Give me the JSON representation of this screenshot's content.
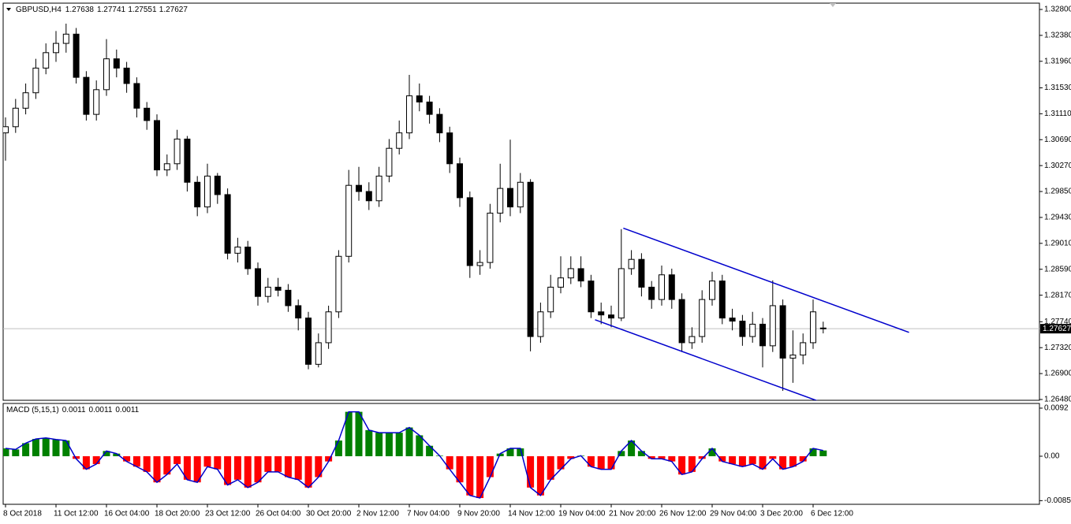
{
  "chart_data": {
    "type": "candlestick",
    "symbol": "GBPUSD,H4",
    "quote": [
      1.27638,
      1.27741,
      1.27551,
      1.27627
    ],
    "up_color": "#ffffff",
    "down_color": "#000000",
    "wick_color": "#000000",
    "categories": [
      "8 Oct 2018",
      null,
      null,
      null,
      null,
      "11 Oct 12:00",
      null,
      null,
      null,
      null,
      "16 Oct 04:00",
      null,
      null,
      null,
      null,
      "18 Oct 20:00",
      null,
      null,
      null,
      null,
      "23 Oct 12:00",
      null,
      null,
      null,
      null,
      "26 Oct 04:00",
      null,
      null,
      null,
      null,
      "30 Oct 20:00",
      null,
      null,
      null,
      null,
      "2 Nov 12:00",
      null,
      null,
      null,
      null,
      "7 Nov 04:00",
      null,
      null,
      null,
      null,
      "9 Nov 20:00",
      null,
      null,
      null,
      null,
      "14 Nov 12:00",
      null,
      null,
      null,
      null,
      "19 Nov 04:00",
      null,
      null,
      null,
      null,
      "21 Nov 20:00",
      null,
      null,
      null,
      null,
      "26 Nov 12:00",
      null,
      null,
      null,
      null,
      "29 Nov 04:00",
      null,
      null,
      null,
      null,
      "3 Dec 20:00",
      null,
      null,
      null,
      null,
      "6 Dec 12:00",
      null
    ],
    "open": [
      1.308,
      1.309,
      1.312,
      1.3145,
      1.3185,
      1.321,
      1.3225,
      1.324,
      1.317,
      1.311,
      1.315,
      1.32,
      1.3185,
      1.316,
      1.312,
      1.31,
      1.302,
      1.303,
      1.307,
      1.3,
      1.296,
      1.301,
      1.298,
      1.2885,
      1.2895,
      1.286,
      1.2815,
      1.283,
      1.2825,
      1.28,
      1.278,
      1.2705,
      1.274,
      1.279,
      1.288,
      1.2995,
      1.2985,
      1.297,
      1.301,
      1.3055,
      1.308,
      1.314,
      1.313,
      1.311,
      1.308,
      1.303,
      1.2975,
      1.2865,
      1.287,
      1.295,
      1.299,
      1.296,
      1.3,
      1.275,
      1.279,
      1.283,
      1.2845,
      1.286,
      1.284,
      1.279,
      1.2785,
      1.278,
      1.286,
      1.2875,
      1.283,
      1.281,
      1.285,
      1.281,
      1.274,
      1.275,
      1.281,
      1.284,
      1.278,
      1.2775,
      1.275,
      1.277,
      1.2735,
      1.28,
      1.2715,
      1.272,
      1.274,
      1.27638
    ],
    "high": [
      1.3105,
      1.3135,
      1.316,
      1.32,
      1.3225,
      1.3245,
      1.3257,
      1.325,
      1.318,
      1.3165,
      1.3232,
      1.3215,
      1.3195,
      1.317,
      1.313,
      1.311,
      1.3045,
      1.3085,
      1.3075,
      1.301,
      1.303,
      1.3015,
      1.299,
      1.291,
      1.2905,
      1.287,
      1.2845,
      1.2845,
      1.2835,
      1.281,
      1.279,
      1.2755,
      1.28,
      1.289,
      1.302,
      1.3025,
      1.3,
      1.3025,
      1.307,
      1.31,
      1.3174,
      1.316,
      1.314,
      1.312,
      1.309,
      1.304,
      1.2985,
      1.289,
      1.2965,
      1.303,
      1.3069,
      1.3015,
      1.3005,
      1.2805,
      1.285,
      1.288,
      1.288,
      1.288,
      1.285,
      1.2805,
      1.28,
      1.2924,
      1.289,
      1.2885,
      1.284,
      1.2865,
      1.286,
      1.282,
      1.2765,
      1.2825,
      1.2855,
      1.285,
      1.2795,
      1.2785,
      1.279,
      1.278,
      1.2841,
      1.281,
      1.276,
      1.2755,
      1.281,
      1.27741
    ],
    "low": [
      1.3035,
      1.308,
      1.311,
      1.3135,
      1.3175,
      1.3195,
      1.321,
      1.316,
      1.31,
      1.31,
      1.314,
      1.317,
      1.3145,
      1.3105,
      1.3085,
      1.301,
      1.301,
      1.302,
      1.2985,
      1.2945,
      1.295,
      1.2965,
      1.2875,
      1.287,
      1.285,
      1.28,
      1.2805,
      1.2815,
      1.279,
      1.276,
      1.2697,
      1.27,
      1.273,
      1.278,
      1.287,
      1.297,
      1.2955,
      1.296,
      1.3,
      1.3045,
      1.307,
      1.3115,
      1.3095,
      1.3065,
      1.3015,
      1.296,
      1.2845,
      1.285,
      1.286,
      1.2935,
      1.2945,
      1.295,
      1.2726,
      1.274,
      1.278,
      1.282,
      1.2835,
      1.283,
      1.278,
      1.277,
      1.2765,
      1.2775,
      1.285,
      1.2815,
      1.2795,
      1.28,
      1.2795,
      1.2725,
      1.273,
      1.274,
      1.28,
      1.277,
      1.276,
      1.2735,
      1.274,
      1.27,
      1.2725,
      1.2662,
      1.2675,
      1.2705,
      1.273,
      1.27551
    ],
    "close": [
      1.309,
      1.312,
      1.3145,
      1.3185,
      1.321,
      1.3225,
      1.324,
      1.317,
      1.311,
      1.315,
      1.32,
      1.3185,
      1.316,
      1.312,
      1.31,
      1.302,
      1.303,
      1.307,
      1.3,
      1.296,
      1.301,
      1.298,
      1.2885,
      1.2895,
      1.286,
      1.2815,
      1.283,
      1.2825,
      1.28,
      1.278,
      1.2705,
      1.274,
      1.279,
      1.288,
      1.2995,
      1.2985,
      1.297,
      1.301,
      1.3055,
      1.308,
      1.314,
      1.313,
      1.311,
      1.308,
      1.303,
      1.2975,
      1.2865,
      1.287,
      1.295,
      1.299,
      1.296,
      1.3,
      1.275,
      1.279,
      1.283,
      1.2845,
      1.286,
      1.284,
      1.279,
      1.2785,
      1.278,
      1.286,
      1.2875,
      1.283,
      1.281,
      1.285,
      1.281,
      1.274,
      1.275,
      1.281,
      1.284,
      1.278,
      1.2775,
      1.275,
      1.277,
      1.2735,
      1.28,
      1.2715,
      1.272,
      1.274,
      1.279,
      1.27627
    ],
    "ylim": [
      1.26467,
      1.32902
    ],
    "yticks": [
      {
        "value": 1.328,
        "label": "1.32800"
      },
      {
        "value": 1.3238,
        "label": "1.32380"
      },
      {
        "value": 1.3196,
        "label": "1.31960"
      },
      {
        "value": 1.3153,
        "label": "1.31530"
      },
      {
        "value": 1.3111,
        "label": "1.31110"
      },
      {
        "value": 1.3069,
        "label": "1.30690"
      },
      {
        "value": 1.3027,
        "label": "1.30270"
      },
      {
        "value": 1.2985,
        "label": "1.29850"
      },
      {
        "value": 1.2943,
        "label": "1.29430"
      },
      {
        "value": 1.2901,
        "label": "1.29010"
      },
      {
        "value": 1.2859,
        "label": "1.28590"
      },
      {
        "value": 1.2817,
        "label": "1.28170"
      },
      {
        "value": 1.2774,
        "label": "1.27740"
      },
      {
        "value": 1.2732,
        "label": "1.27320"
      },
      {
        "value": 1.269,
        "label": "1.26900"
      },
      {
        "value": 1.2648,
        "label": "1.26480"
      }
    ],
    "trendlines": [
      {
        "color": "#0000cc",
        "x": [
          61.2,
          89.5
        ],
        "y": [
          1.29256,
          1.27567
        ]
      },
      {
        "color": "#0000cc",
        "x": [
          58.4,
          80.5
        ],
        "y": [
          1.27772,
          1.26454
        ]
      }
    ],
    "indicator": {
      "type": "bar",
      "name": "MACD (5,15,1)",
      "readout": [
        0.0011,
        0.0011,
        0.0011
      ],
      "up_color": "#008000",
      "down_color": "#ff0000",
      "line_color": "#0000cc",
      "values": [
        0.0015,
        0.0013,
        0.0025,
        0.0033,
        0.0035,
        0.0032,
        0.003,
        -0.0005,
        -0.0025,
        -0.0015,
        0.001,
        0.0005,
        -0.001,
        -0.002,
        -0.003,
        -0.005,
        -0.0035,
        -0.0015,
        -0.0045,
        -0.005,
        -0.002,
        -0.0025,
        -0.0055,
        -0.0045,
        -0.006,
        -0.005,
        -0.003,
        -0.003,
        -0.004,
        -0.0045,
        -0.006,
        -0.004,
        -0.001,
        0.003,
        0.0085,
        0.0085,
        0.005,
        0.0045,
        0.0045,
        0.0045,
        0.0055,
        0.004,
        0.002,
        0.0001,
        -0.0025,
        -0.005,
        -0.0075,
        -0.008,
        -0.004,
        0.0005,
        0.0015,
        0.0015,
        -0.006,
        -0.0075,
        -0.0045,
        -0.0025,
        -0.0005,
        0.0001,
        -0.002,
        -0.0025,
        -0.0025,
        0.001,
        0.003,
        0.001,
        -0.0005,
        -0.0005,
        -0.001,
        -0.0035,
        -0.003,
        -0.0005,
        0.0015,
        -0.001,
        -0.0015,
        -0.002,
        -0.0015,
        -0.0025,
        -0.0005,
        -0.0025,
        -0.002,
        -0.001,
        0.0015,
        0.0011
      ],
      "ylim": [
        -0.0092,
        0.0101
      ],
      "yticks": [
        0.0092,
        {
          "value": 0,
          "label": "0.00"
        },
        -0.0085
      ]
    }
  }
}
